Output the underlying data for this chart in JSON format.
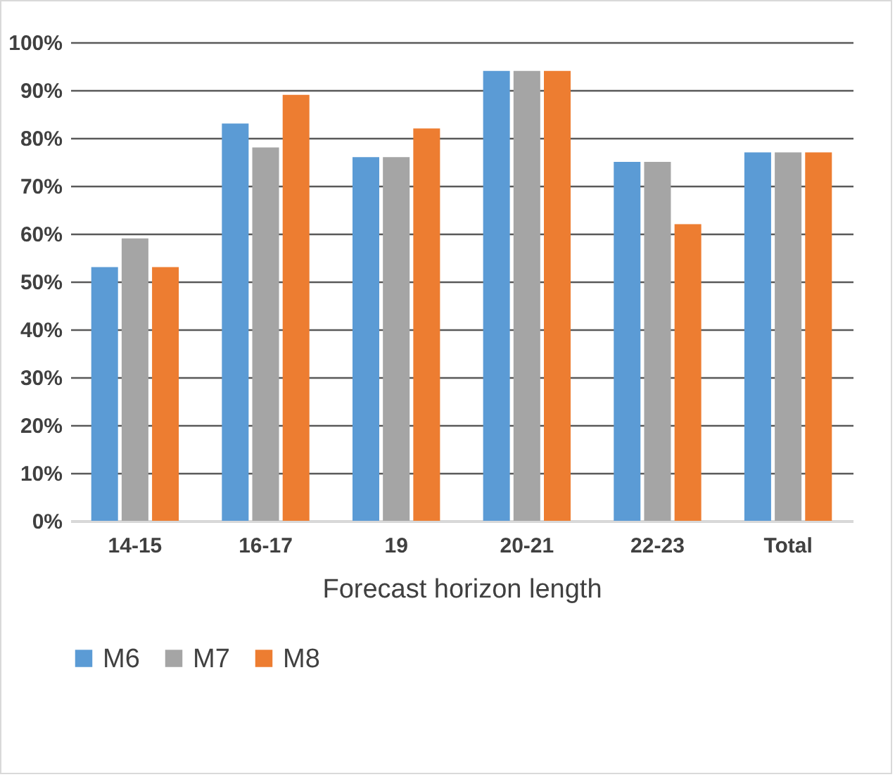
{
  "chart_data": {
    "type": "bar",
    "xlabel": "Forecast horizon length",
    "categories": [
      "14-15",
      "16-17",
      "19",
      "20-21",
      "22-23",
      "Total"
    ],
    "series": [
      {
        "name": "M6",
        "color": "#5b9bd5",
        "values": [
          53,
          83,
          76,
          94,
          75,
          77
        ]
      },
      {
        "name": "M7",
        "color": "#a5a5a5",
        "values": [
          59,
          78,
          76,
          94,
          75,
          77
        ]
      },
      {
        "name": "M8",
        "color": "#ed7d31",
        "values": [
          53,
          89,
          82,
          94,
          62,
          77
        ]
      }
    ],
    "ylim": [
      0,
      100
    ],
    "yticks": [
      {
        "value": 0,
        "label": "0%"
      },
      {
        "value": 10,
        "label": "10%"
      },
      {
        "value": 20,
        "label": "20%"
      },
      {
        "value": 30,
        "label": "30%"
      },
      {
        "value": 40,
        "label": "40%"
      },
      {
        "value": 50,
        "label": "50%"
      },
      {
        "value": 60,
        "label": "60%"
      },
      {
        "value": 70,
        "label": "70%"
      },
      {
        "value": 80,
        "label": "80%"
      },
      {
        "value": 90,
        "label": "90%"
      },
      {
        "value": 100,
        "label": "100%"
      }
    ],
    "grid": "y",
    "legend": "bottom"
  }
}
